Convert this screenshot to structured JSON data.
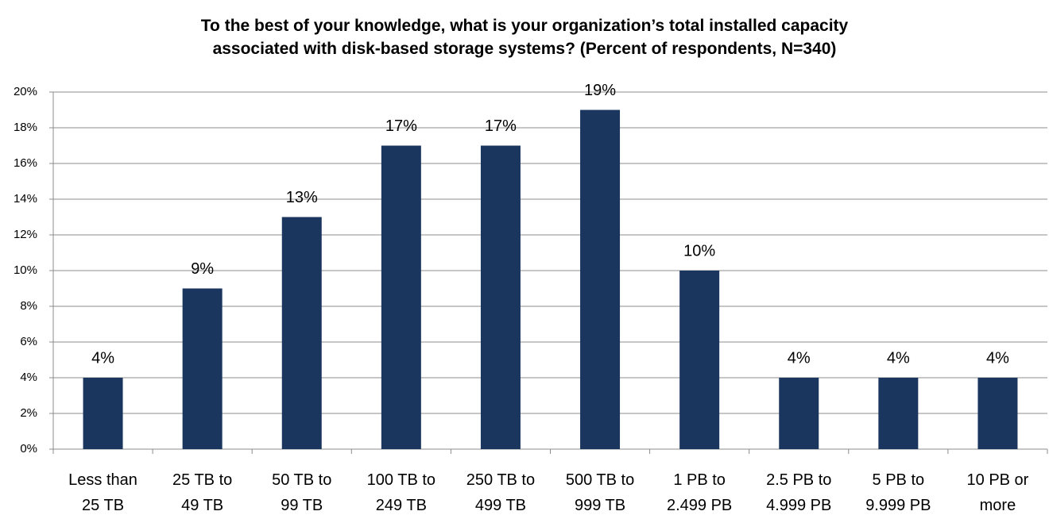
{
  "chart_data": {
    "type": "bar",
    "title": "To the best of your knowledge, what is your organization’s total installed capacity\nassociated with disk-based storage systems? (Percent of respondents, N=340)",
    "categories": [
      "Less than\n25 TB",
      "25 TB to\n49 TB",
      "50 TB to\n99 TB",
      "100 TB to\n249 TB",
      "250 TB to\n499 TB",
      "500 TB to\n999 TB",
      "1 PB to\n2.499 PB",
      "2.5 PB to\n4.999 PB",
      "5 PB to\n9.999 PB",
      "10 PB or\nmore"
    ],
    "values": [
      4,
      9,
      13,
      17,
      17,
      19,
      10,
      4,
      4,
      4
    ],
    "value_labels": [
      "4%",
      "9%",
      "13%",
      "17%",
      "17%",
      "19%",
      "10%",
      "4%",
      "4%",
      "4%"
    ],
    "color": "#1a365f",
    "ylim": [
      0,
      20
    ],
    "yticks": [
      {
        "value": 0,
        "label": "0%"
      },
      {
        "value": 2,
        "label": "2%"
      },
      {
        "value": 4,
        "label": "4%"
      },
      {
        "value": 6,
        "label": "6%"
      },
      {
        "value": 8,
        "label": "8%"
      },
      {
        "value": 10,
        "label": "10%"
      },
      {
        "value": 12,
        "label": "12%"
      },
      {
        "value": 14,
        "label": "14%"
      },
      {
        "value": 16,
        "label": "16%"
      },
      {
        "value": 18,
        "label": "18%"
      },
      {
        "value": 20,
        "label": "20%"
      }
    ],
    "grid": true
  }
}
